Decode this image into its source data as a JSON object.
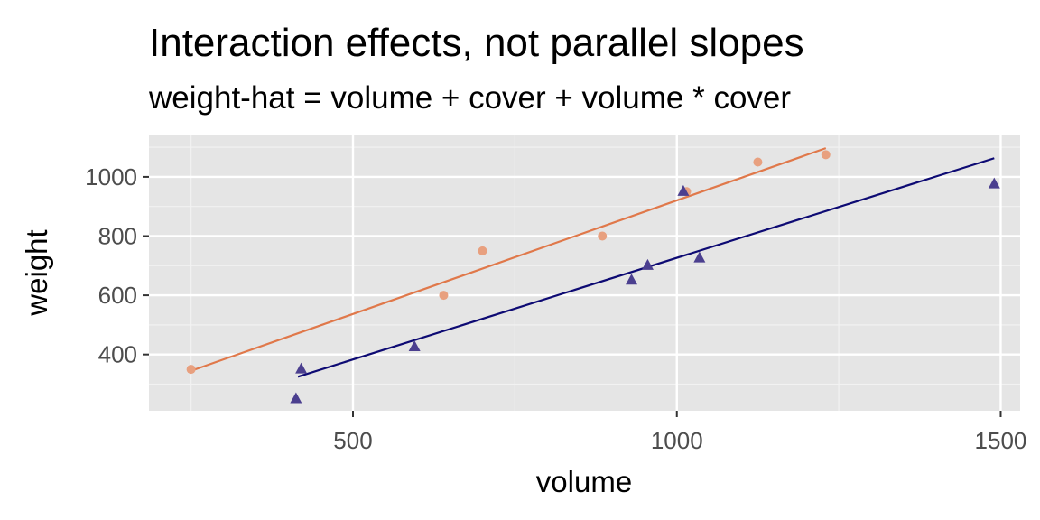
{
  "chart_data": {
    "type": "scatter",
    "title": "Interaction effects, not parallel slopes",
    "subtitle": "weight-hat = volume + cover + volume * cover",
    "xlabel": "volume",
    "ylabel": "weight",
    "xlim": [
      185,
      1530
    ],
    "ylim": [
      210,
      1140
    ],
    "xticks": [
      500,
      1000,
      1500
    ],
    "yticks": [
      400,
      600,
      800,
      1000
    ],
    "grid": true,
    "legend": "none",
    "series": [
      {
        "color": "#e8a07f",
        "line_color": "#e0784a",
        "marker": "circle",
        "points": [
          [
            250,
            350
          ],
          [
            640,
            600
          ],
          [
            700,
            750
          ],
          [
            885,
            800
          ],
          [
            1015,
            950
          ],
          [
            1125,
            1050
          ],
          [
            1230,
            1075
          ]
        ],
        "fit": [
          [
            250,
            345
          ],
          [
            1230,
            1097
          ]
        ]
      },
      {
        "color": "#4b3f8f",
        "line_color": "#0d0a73",
        "marker": "triangle",
        "points": [
          [
            412,
            250
          ],
          [
            420,
            350
          ],
          [
            595,
            425
          ],
          [
            930,
            650
          ],
          [
            955,
            700
          ],
          [
            1010,
            950
          ],
          [
            1035,
            725
          ],
          [
            1490,
            975
          ]
        ],
        "fit": [
          [
            415,
            325
          ],
          [
            1490,
            1063
          ]
        ]
      }
    ]
  }
}
